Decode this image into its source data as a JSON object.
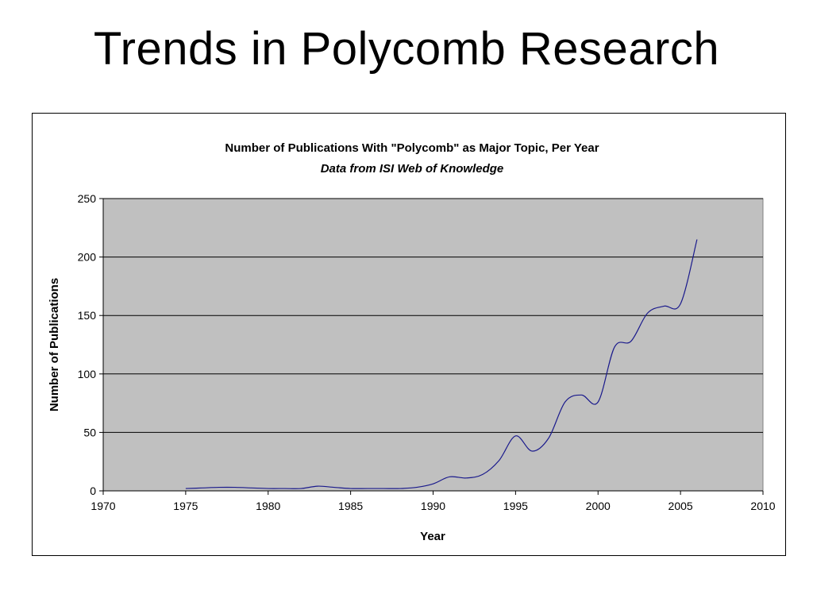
{
  "slide": {
    "title": "Trends in Polycomb Research"
  },
  "chart_data": {
    "type": "line",
    "title": "Number of Publications With \"Polycomb\" as Major Topic, Per Year",
    "subtitle": "Data from ISI Web of Knowledge",
    "xlabel": "Year",
    "ylabel": "Number of Publications",
    "xlim": [
      1970,
      2010
    ],
    "ylim": [
      0,
      250
    ],
    "xticks": [
      1970,
      1975,
      1980,
      1985,
      1990,
      1995,
      2000,
      2005,
      2010
    ],
    "yticks": [
      0,
      50,
      100,
      150,
      200,
      250
    ],
    "grid": "horizontal",
    "legend": "none",
    "colors": {
      "line": "#1a1a8c",
      "plot_background": "#c0c0c0",
      "gridline": "#000000"
    },
    "series": [
      {
        "x": [
          1975,
          1976,
          1977,
          1978,
          1979,
          1980,
          1981,
          1982,
          1983,
          1984,
          1985,
          1986,
          1987,
          1988,
          1989,
          1990,
          1991,
          1992,
          1993,
          1994,
          1995,
          1996,
          1997,
          1998,
          1999,
          2000,
          2001,
          2002,
          2003,
          2004,
          2005,
          2006
        ],
        "y": [
          2,
          2.5,
          3,
          3,
          2.5,
          2,
          2,
          2,
          4,
          3,
          2,
          2,
          2,
          2,
          3,
          6,
          12,
          11,
          14,
          26,
          47,
          34,
          45,
          76,
          82,
          76,
          123,
          128,
          152,
          158,
          160,
          215
        ]
      }
    ]
  }
}
